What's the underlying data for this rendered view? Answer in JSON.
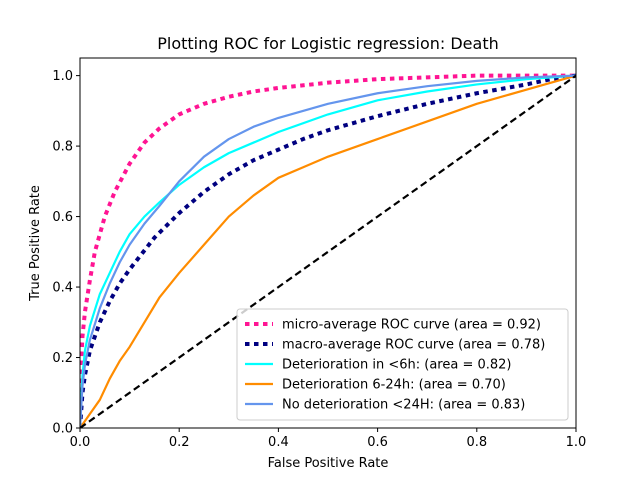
{
  "chart_data": {
    "type": "line",
    "title": "Plotting ROC for Logistic regression: Death",
    "xlabel": "False Positive Rate",
    "ylabel": "True Positive Rate",
    "xlim": [
      0.0,
      1.0
    ],
    "ylim": [
      0.0,
      1.05
    ],
    "xticks": [
      "0.0",
      "0.2",
      "0.4",
      "0.6",
      "0.8",
      "1.0"
    ],
    "yticks": [
      "0.0",
      "0.2",
      "0.4",
      "0.6",
      "0.8",
      "1.0"
    ],
    "grid": false,
    "legend_position": "lower-right",
    "series": [
      {
        "name": "micro-average ROC curve (area = 0.92)",
        "color": "#ff1493",
        "style": "dotted",
        "x": [
          0,
          0.002,
          0.005,
          0.01,
          0.02,
          0.03,
          0.05,
          0.07,
          0.1,
          0.13,
          0.16,
          0.2,
          0.25,
          0.3,
          0.35,
          0.4,
          0.5,
          0.6,
          0.7,
          0.8,
          0.9,
          1.0
        ],
        "y": [
          0,
          0.18,
          0.26,
          0.33,
          0.42,
          0.5,
          0.6,
          0.67,
          0.75,
          0.81,
          0.85,
          0.89,
          0.92,
          0.94,
          0.955,
          0.965,
          0.98,
          0.99,
          0.995,
          1.0,
          1.0,
          1.0
        ]
      },
      {
        "name": "macro-average ROC curve (area = 0.78)",
        "color": "#000080",
        "style": "dotted",
        "x": [
          0,
          0.005,
          0.01,
          0.02,
          0.04,
          0.06,
          0.08,
          0.1,
          0.15,
          0.2,
          0.25,
          0.3,
          0.35,
          0.4,
          0.45,
          0.5,
          0.6,
          0.7,
          0.8,
          0.9,
          0.95,
          1.0
        ],
        "y": [
          0,
          0.1,
          0.15,
          0.22,
          0.3,
          0.36,
          0.41,
          0.45,
          0.54,
          0.61,
          0.67,
          0.72,
          0.76,
          0.79,
          0.82,
          0.845,
          0.885,
          0.92,
          0.95,
          0.975,
          0.99,
          1.0
        ]
      },
      {
        "name": "Deterioration in <6h: (area = 0.82)",
        "color": "#00ffff",
        "style": "solid",
        "x": [
          0,
          0.005,
          0.01,
          0.02,
          0.04,
          0.06,
          0.08,
          0.1,
          0.13,
          0.16,
          0.2,
          0.25,
          0.3,
          0.35,
          0.4,
          0.5,
          0.6,
          0.7,
          0.8,
          0.9,
          1.0
        ],
        "y": [
          0,
          0.15,
          0.22,
          0.29,
          0.38,
          0.44,
          0.5,
          0.55,
          0.6,
          0.64,
          0.69,
          0.74,
          0.78,
          0.81,
          0.84,
          0.89,
          0.93,
          0.955,
          0.975,
          0.99,
          1.0
        ]
      },
      {
        "name": "Deterioration 6-24h: (area = 0.70)",
        "color": "#ff8c00",
        "style": "solid",
        "x": [
          0,
          0.01,
          0.02,
          0.04,
          0.06,
          0.08,
          0.1,
          0.13,
          0.16,
          0.2,
          0.25,
          0.3,
          0.35,
          0.4,
          0.45,
          0.5,
          0.6,
          0.7,
          0.8,
          0.9,
          1.0
        ],
        "y": [
          0,
          0.02,
          0.04,
          0.08,
          0.14,
          0.19,
          0.23,
          0.3,
          0.37,
          0.44,
          0.52,
          0.6,
          0.66,
          0.71,
          0.74,
          0.77,
          0.82,
          0.87,
          0.92,
          0.96,
          1.0
        ]
      },
      {
        "name": "No deterioration <24H: (area = 0.83)",
        "color": "#6495ed",
        "style": "solid",
        "x": [
          0,
          0.005,
          0.01,
          0.02,
          0.04,
          0.06,
          0.08,
          0.1,
          0.13,
          0.16,
          0.2,
          0.25,
          0.3,
          0.35,
          0.4,
          0.5,
          0.6,
          0.7,
          0.8,
          0.9,
          1.0
        ],
        "y": [
          0,
          0.12,
          0.18,
          0.25,
          0.34,
          0.41,
          0.47,
          0.52,
          0.58,
          0.63,
          0.7,
          0.77,
          0.82,
          0.855,
          0.88,
          0.92,
          0.95,
          0.97,
          0.985,
          0.995,
          1.0
        ]
      },
      {
        "name": "",
        "color": "#000000",
        "style": "dashed",
        "x": [
          0,
          1
        ],
        "y": [
          0,
          1
        ]
      }
    ]
  }
}
